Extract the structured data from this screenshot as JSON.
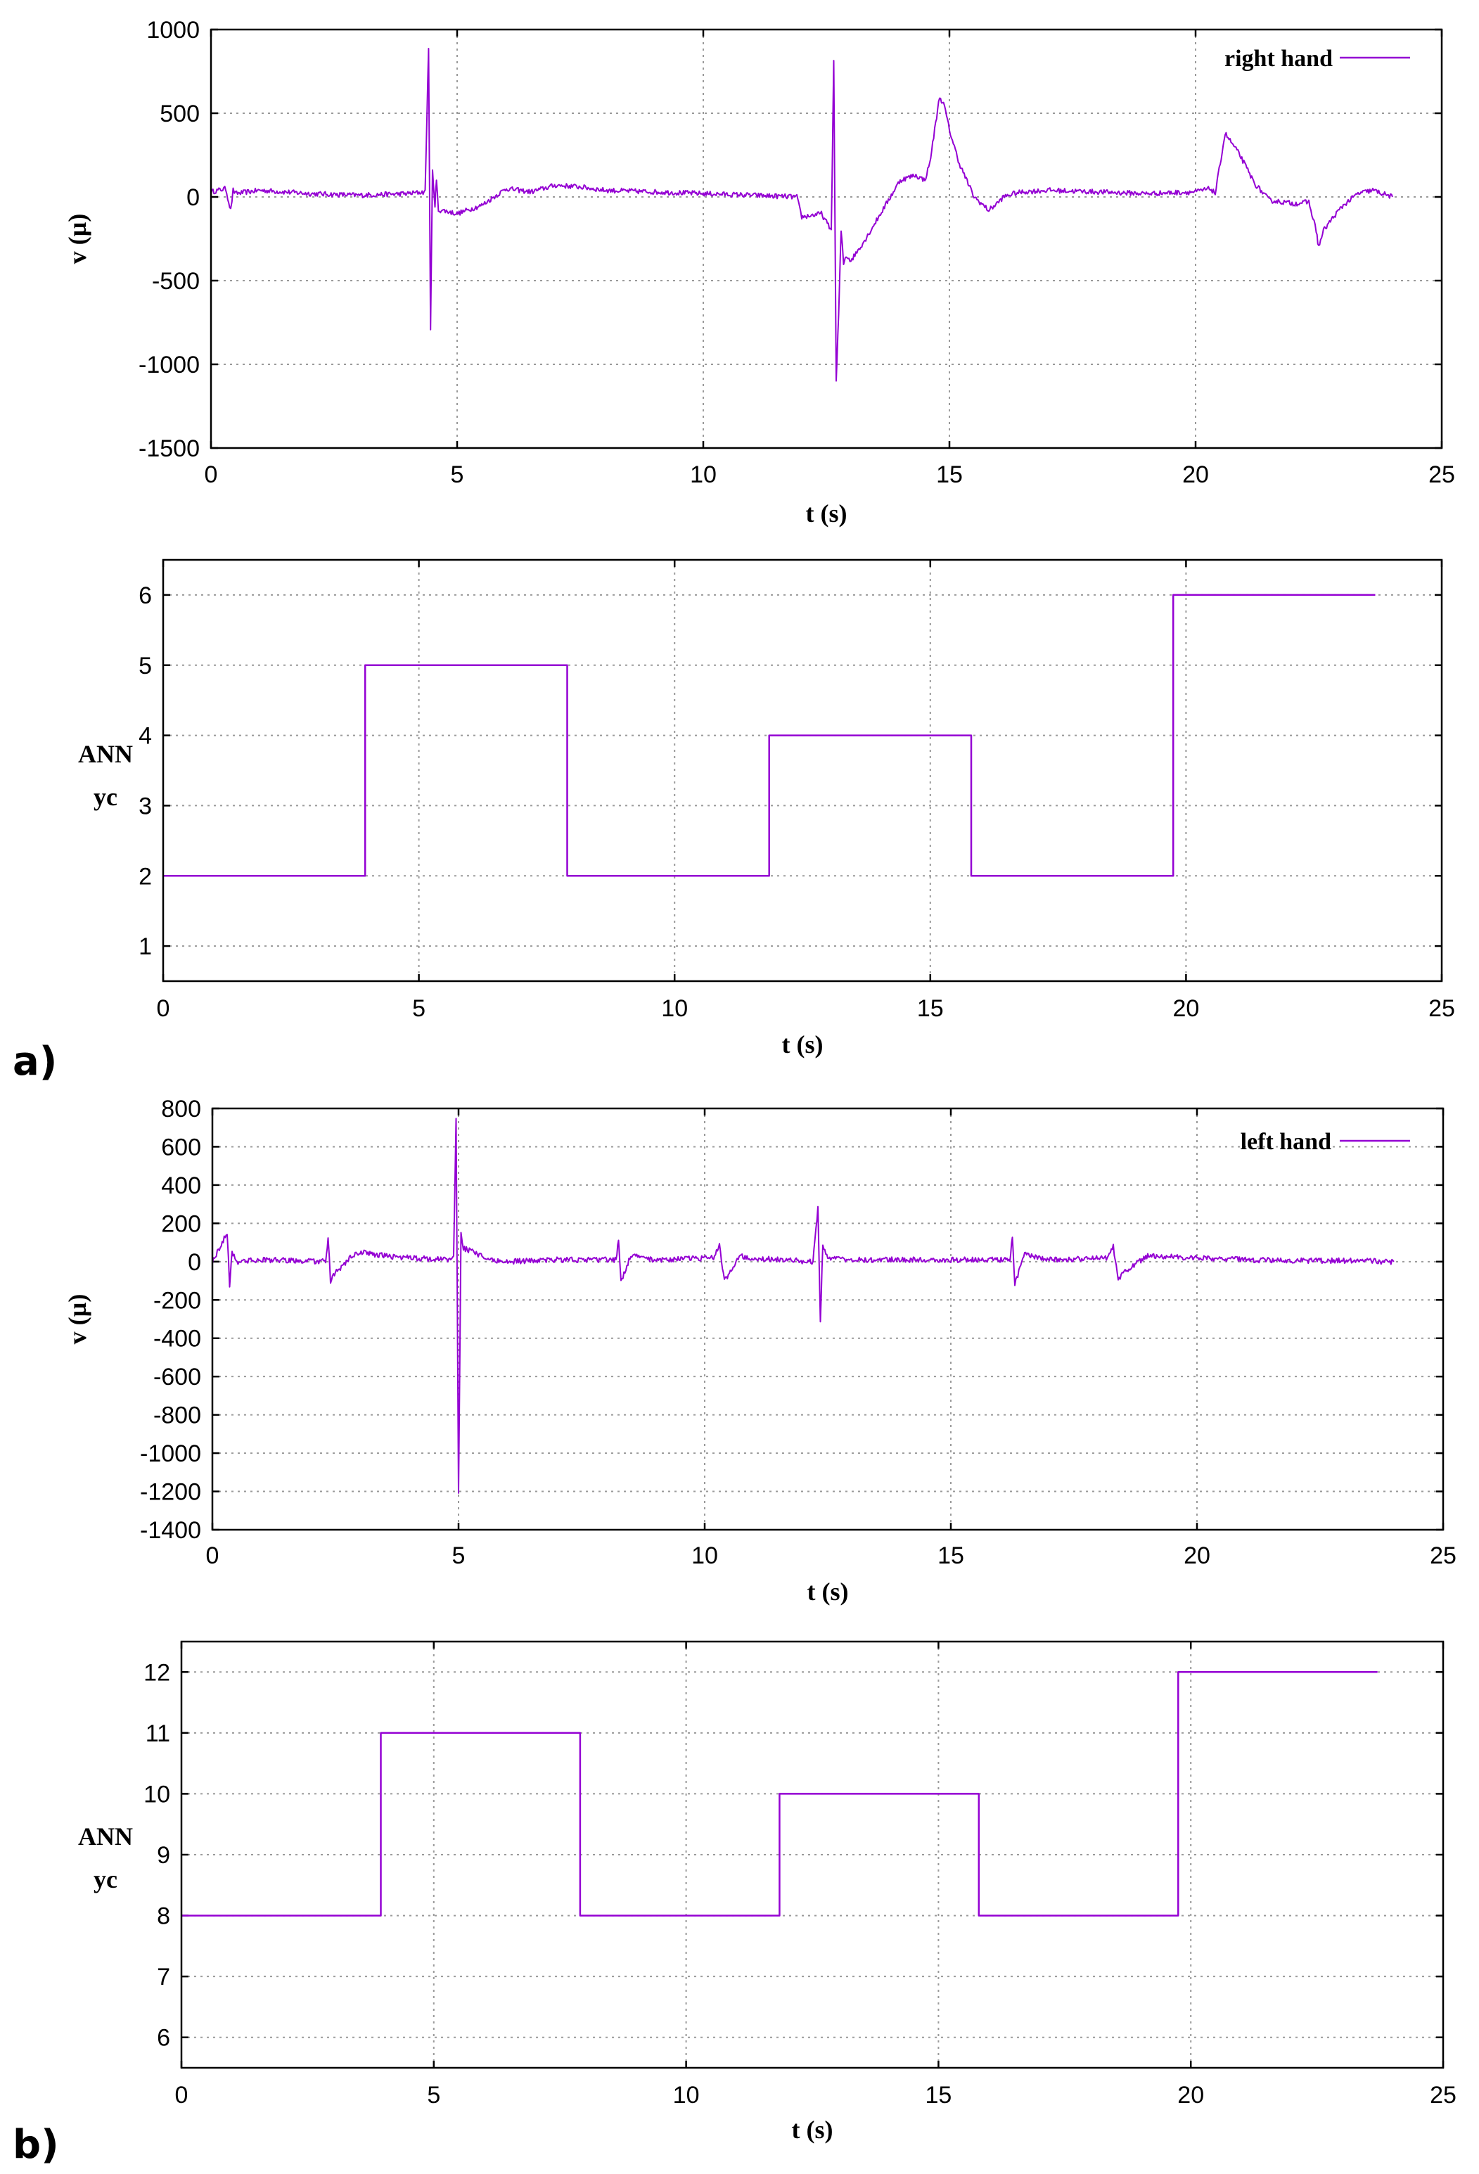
{
  "panel_labels": {
    "a": "a)",
    "b": "b)"
  },
  "colors": {
    "series": "#9400d3",
    "grid": "#9a9a9a",
    "axis": "#000000"
  },
  "chart_data": [
    {
      "id": "a-signal",
      "type": "line",
      "xlabel": "t (s)",
      "ylabel": "v (µ)",
      "xlim": [
        0,
        25
      ],
      "ylim": [
        -1500,
        1000
      ],
      "xticks": [
        0,
        5,
        10,
        15,
        20,
        25
      ],
      "yticks": [
        -1500,
        -1000,
        -500,
        0,
        500,
        1000
      ],
      "grid": true,
      "legend_position": "top-right",
      "series": [
        {
          "name": "right hand",
          "noise_amplitude": 15,
          "x": [
            0,
            0.3,
            0.4,
            0.45,
            0.5,
            1.0,
            2.0,
            3.0,
            4.0,
            4.35,
            4.42,
            4.46,
            4.5,
            4.55,
            4.58,
            4.62,
            4.7,
            5.0,
            5.5,
            6.0,
            6.5,
            7.0,
            7.5,
            8.0,
            9.0,
            10.0,
            11.0,
            11.9,
            12.0,
            12.4,
            12.6,
            12.65,
            12.7,
            12.75,
            12.8,
            12.85,
            12.9,
            13.0,
            13.3,
            13.6,
            14.0,
            14.3,
            14.5,
            14.6,
            14.8,
            14.9,
            15.0,
            15.2,
            15.5,
            15.8,
            16.0,
            16.1,
            16.3,
            16.5,
            17.0,
            18.0,
            19.0,
            20.0,
            20.3,
            20.4,
            20.6,
            20.9,
            21.2,
            21.5,
            22.0,
            22.3,
            22.45,
            22.5,
            22.6,
            22.8,
            23.0,
            23.3,
            23.6,
            24.0
          ],
          "y": [
            30,
            50,
            -80,
            40,
            20,
            40,
            20,
            10,
            20,
            30,
            900,
            -800,
            170,
            -60,
            100,
            -80,
            -80,
            -100,
            -50,
            50,
            30,
            70,
            60,
            40,
            30,
            20,
            10,
            0,
            -120,
            -100,
            -200,
            800,
            -1100,
            -700,
            -200,
            -400,
            -350,
            -380,
            -250,
            -100,
            100,
            130,
            100,
            200,
            600,
            540,
            400,
            200,
            0,
            -80,
            -30,
            0,
            20,
            30,
            40,
            30,
            20,
            30,
            50,
            20,
            380,
            250,
            80,
            -20,
            -40,
            -30,
            -200,
            -300,
            -200,
            -120,
            -50,
            20,
            40,
            0
          ]
        }
      ]
    },
    {
      "id": "a-ann",
      "type": "line",
      "xlabel": "t (s)",
      "ylabel_lines": [
        "ANN",
        "yc"
      ],
      "xlim": [
        0,
        25
      ],
      "ylim": [
        0.5,
        6.5
      ],
      "xticks": [
        0,
        5,
        10,
        15,
        20,
        25
      ],
      "yticks": [
        1,
        2,
        3,
        4,
        5,
        6
      ],
      "grid": true,
      "series": [
        {
          "x": [
            0,
            3.95,
            3.95,
            7.9,
            7.9,
            11.85,
            11.85,
            15.8,
            15.8,
            19.75,
            19.75,
            23.7
          ],
          "y": [
            2,
            2,
            5,
            5,
            2,
            2,
            4,
            4,
            2,
            2,
            6,
            6
          ]
        }
      ]
    },
    {
      "id": "b-signal",
      "type": "line",
      "xlabel": "t (s)",
      "ylabel": "v (µ)",
      "xlim": [
        0,
        25
      ],
      "ylim": [
        -1400,
        800
      ],
      "xticks": [
        0,
        5,
        10,
        15,
        20,
        25
      ],
      "yticks": [
        -1400,
        -1200,
        -1000,
        -800,
        -600,
        -400,
        -200,
        0,
        200,
        400,
        600,
        800
      ],
      "grid": true,
      "legend_position": "top-right",
      "series": [
        {
          "name": "left hand",
          "noise_amplitude": 14,
          "x": [
            0,
            0.3,
            0.35,
            0.4,
            0.5,
            1.0,
            2.3,
            2.35,
            2.4,
            2.5,
            2.8,
            3.0,
            3.5,
            4.0,
            4.8,
            4.9,
            4.95,
            5.0,
            5.05,
            5.1,
            5.3,
            5.6,
            6.0,
            7.0,
            8.2,
            8.25,
            8.3,
            8.5,
            9.0,
            10.2,
            10.3,
            10.4,
            10.5,
            10.7,
            11.0,
            11.5,
            12.2,
            12.3,
            12.35,
            12.4,
            12.5,
            13.0,
            14.0,
            15.0,
            16.2,
            16.25,
            16.3,
            16.5,
            17.0,
            18.2,
            18.3,
            18.4,
            18.6,
            19.0,
            20.0,
            21.0,
            22.0,
            23.0,
            24.0
          ],
          "y": [
            0,
            150,
            -120,
            50,
            0,
            10,
            0,
            120,
            -100,
            -60,
            20,
            50,
            30,
            20,
            10,
            30,
            750,
            -1200,
            150,
            70,
            50,
            10,
            0,
            10,
            10,
            120,
            -100,
            30,
            10,
            20,
            90,
            -100,
            -60,
            30,
            20,
            10,
            0,
            280,
            -300,
            90,
            20,
            10,
            10,
            10,
            10,
            140,
            -120,
            40,
            10,
            20,
            80,
            -90,
            -40,
            30,
            20,
            10,
            5,
            5,
            0
          ]
        }
      ]
    },
    {
      "id": "b-ann",
      "type": "line",
      "xlabel": "t (s)",
      "ylabel_lines": [
        "ANN",
        "yc"
      ],
      "xlim": [
        0,
        25
      ],
      "ylim": [
        5.5,
        12.5
      ],
      "xticks": [
        0,
        5,
        10,
        15,
        20,
        25
      ],
      "yticks": [
        6,
        7,
        8,
        9,
        10,
        11,
        12
      ],
      "grid": true,
      "series": [
        {
          "x": [
            0,
            3.95,
            3.95,
            7.9,
            7.9,
            11.85,
            11.85,
            15.8,
            15.8,
            19.75,
            19.75,
            23.7
          ],
          "y": [
            8,
            8,
            11,
            11,
            8,
            8,
            10,
            10,
            8,
            8,
            12,
            12
          ]
        }
      ]
    }
  ]
}
